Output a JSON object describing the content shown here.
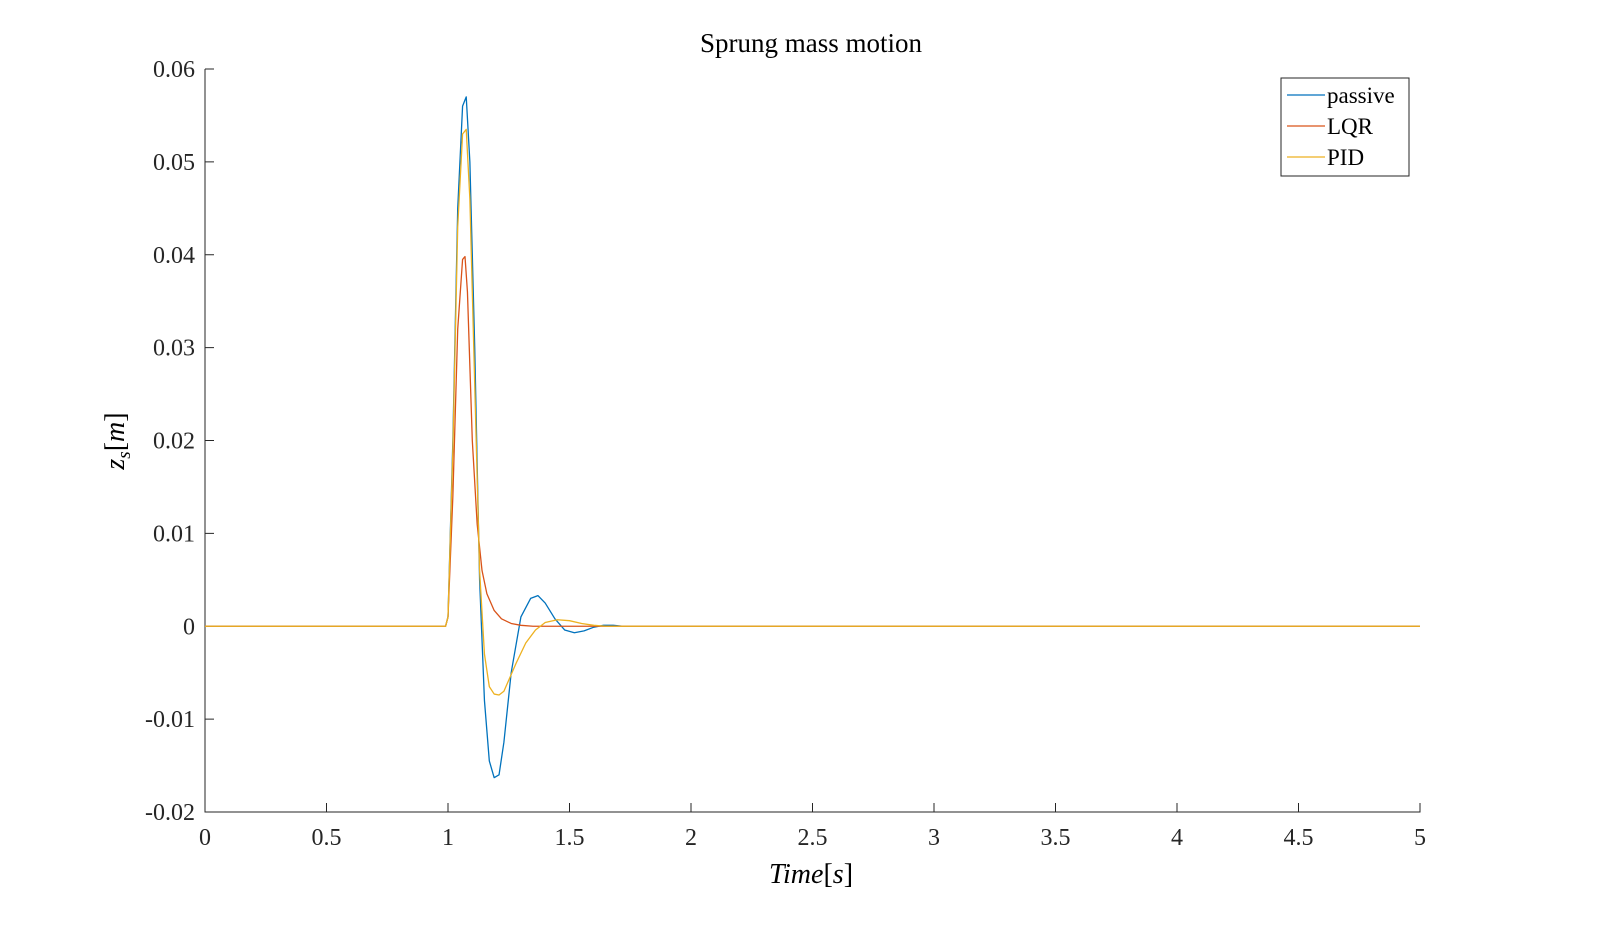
{
  "chart_data": {
    "type": "line",
    "title": "Sprung mass motion",
    "xlabel_main": "Time",
    "xlabel_unit": "s",
    "ylabel_main": "z",
    "ylabel_sub": "s",
    "ylabel_unit": "m",
    "xlim": [
      0,
      5
    ],
    "ylim": [
      -0.02,
      0.06
    ],
    "xticks": [
      0,
      0.5,
      1,
      1.5,
      2,
      2.5,
      3,
      3.5,
      4,
      4.5,
      5
    ],
    "xtick_labels": [
      "0",
      "0.5",
      "1",
      "1.5",
      "2",
      "2.5",
      "3",
      "3.5",
      "4",
      "4.5",
      "5"
    ],
    "yticks": [
      -0.02,
      -0.01,
      0,
      0.01,
      0.02,
      0.03,
      0.04,
      0.05,
      0.06
    ],
    "ytick_labels": [
      "-0.02",
      "-0.01",
      "0",
      "0.01",
      "0.02",
      "0.03",
      "0.04",
      "0.05",
      "0.06"
    ],
    "grid": false,
    "legend_position": "top-right",
    "series": [
      {
        "name": "passive",
        "color": "#0072BD",
        "x": [
          0,
          0.99,
          1.0,
          1.02,
          1.04,
          1.06,
          1.075,
          1.09,
          1.11,
          1.13,
          1.15,
          1.17,
          1.19,
          1.21,
          1.23,
          1.26,
          1.3,
          1.34,
          1.37,
          1.4,
          1.44,
          1.48,
          1.52,
          1.56,
          1.6,
          1.64,
          1.68,
          1.72,
          1.75,
          1.76,
          5
        ],
        "y": [
          0,
          0,
          0.001,
          0.02,
          0.045,
          0.056,
          0.057,
          0.05,
          0.03,
          0.005,
          -0.008,
          -0.0145,
          -0.0163,
          -0.016,
          -0.0125,
          -0.005,
          0.001,
          0.003,
          0.0033,
          0.0025,
          0.0008,
          -0.0004,
          -0.0007,
          -0.0005,
          -0.0001,
          0.0001,
          0.0001,
          0.0,
          0.0,
          0,
          0
        ]
      },
      {
        "name": "LQR",
        "color": "#D95319",
        "x": [
          0,
          0.99,
          1.0,
          1.02,
          1.04,
          1.06,
          1.07,
          1.08,
          1.09,
          1.1,
          1.12,
          1.14,
          1.16,
          1.19,
          1.22,
          1.26,
          1.3,
          1.35,
          1.4,
          1.5,
          1.6,
          1.7,
          1.75,
          5
        ],
        "y": [
          0,
          0,
          0.001,
          0.014,
          0.032,
          0.0395,
          0.0398,
          0.036,
          0.028,
          0.02,
          0.011,
          0.006,
          0.0035,
          0.0017,
          0.0008,
          0.0003,
          0.0001,
          0.0,
          0.0,
          0.0,
          0.0,
          0.0,
          0.0,
          0
        ]
      },
      {
        "name": "PID",
        "color": "#EDB120",
        "x": [
          0,
          0.99,
          1.0,
          1.02,
          1.04,
          1.06,
          1.075,
          1.09,
          1.11,
          1.13,
          1.15,
          1.17,
          1.19,
          1.21,
          1.23,
          1.25,
          1.28,
          1.32,
          1.36,
          1.4,
          1.45,
          1.5,
          1.55,
          1.6,
          1.65,
          1.7,
          1.75,
          5
        ],
        "y": [
          0,
          0,
          0.001,
          0.019,
          0.043,
          0.053,
          0.0535,
          0.046,
          0.026,
          0.006,
          -0.003,
          -0.0065,
          -0.0073,
          -0.0074,
          -0.007,
          -0.0058,
          -0.004,
          -0.0018,
          -0.0004,
          0.0004,
          0.0007,
          0.0006,
          0.0003,
          0.0001,
          0.0,
          0.0,
          0.0,
          0
        ]
      }
    ]
  }
}
